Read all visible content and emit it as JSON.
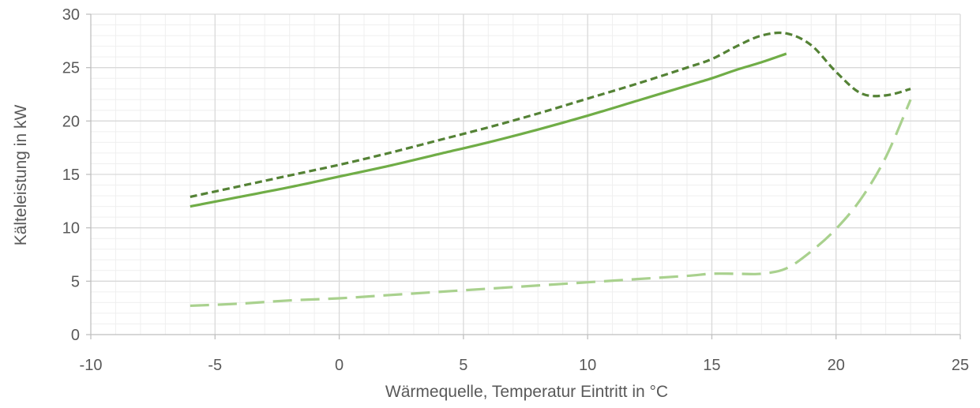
{
  "chart_data": {
    "type": "line",
    "title": "",
    "xlabel": "Wärmequelle, Temperatur Eintritt in °C",
    "ylabel": "Kälteleistung in kW",
    "xlim": [
      -10,
      25
    ],
    "ylim": [
      0,
      30
    ],
    "x_ticks": [
      -10,
      -5,
      0,
      5,
      10,
      15,
      20,
      25
    ],
    "y_ticks": [
      0,
      5,
      10,
      15,
      20,
      25,
      30
    ],
    "x_minor_step": 1,
    "y_minor_step": 1,
    "grid": true,
    "legend": "none",
    "series": [
      {
        "style": "dashed",
        "color": "#548235",
        "x": [
          -6,
          -4,
          -2,
          0,
          2,
          4,
          6,
          8,
          10,
          12,
          14,
          15,
          16,
          17,
          18,
          19,
          20,
          21,
          22,
          23
        ],
        "y": [
          12.9,
          13.9,
          14.9,
          15.9,
          17.0,
          18.2,
          19.4,
          20.7,
          22.1,
          23.5,
          25.0,
          25.8,
          27.0,
          28.0,
          28.2,
          27.1,
          24.6,
          22.6,
          22.4,
          23.0
        ]
      },
      {
        "style": "solid",
        "color": "#70ad47",
        "x": [
          -6,
          -4,
          -2,
          0,
          2,
          4,
          6,
          8,
          10,
          12,
          14,
          15,
          16,
          17,
          18
        ],
        "y": [
          12.0,
          12.9,
          13.8,
          14.8,
          15.8,
          16.9,
          18.0,
          19.2,
          20.5,
          21.9,
          23.3,
          24.0,
          24.8,
          25.5,
          26.3
        ]
      },
      {
        "style": "longdash",
        "color": "#a9d18e",
        "x": [
          -6,
          -4,
          -2,
          0,
          2,
          4,
          6,
          8,
          10,
          12,
          14,
          15,
          16,
          17,
          18,
          19,
          20,
          21,
          22,
          23
        ],
        "y": [
          2.7,
          2.9,
          3.2,
          3.4,
          3.7,
          4.0,
          4.3,
          4.6,
          4.9,
          5.2,
          5.5,
          5.7,
          5.7,
          5.7,
          6.2,
          7.8,
          9.9,
          12.7,
          16.6,
          22.0
        ]
      }
    ]
  }
}
